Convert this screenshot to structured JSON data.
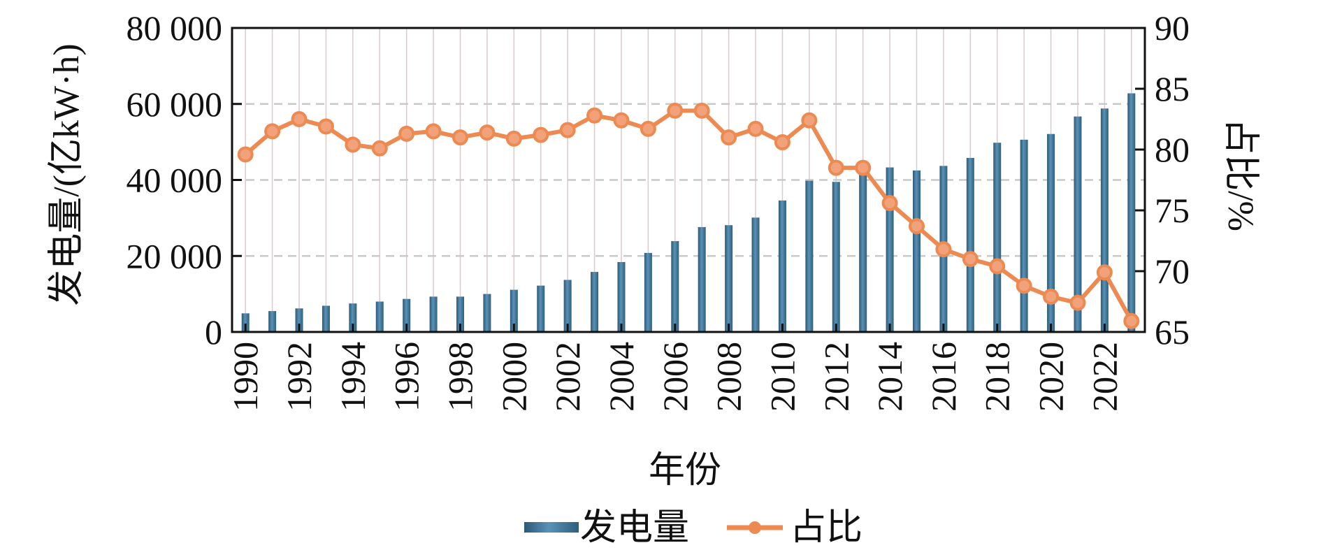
{
  "chart_data": {
    "type": "bar+line",
    "title": "",
    "xlabel": "年份",
    "ylabel_left": "发电量/(亿kW·h)",
    "ylabel_right": "占比/%",
    "ylim_left": [
      0,
      80000
    ],
    "ylim_right": [
      65,
      90
    ],
    "yticks_left": [
      "0",
      "20 000",
      "40 000",
      "60 000",
      "80 000"
    ],
    "yticks_right": [
      "65",
      "70",
      "75",
      "80",
      "85",
      "90"
    ],
    "xtick_labels": [
      "1990",
      "1992",
      "1994",
      "1996",
      "1998",
      "2000",
      "2002",
      "2004",
      "2006",
      "2008",
      "2010",
      "2012",
      "2014",
      "2016",
      "2018",
      "2020",
      "2022"
    ],
    "categories": [
      "1990",
      "1991",
      "1992",
      "1993",
      "1994",
      "1995",
      "1996",
      "1997",
      "1998",
      "1999",
      "2000",
      "2001",
      "2002",
      "2003",
      "2004",
      "2005",
      "2006",
      "2007",
      "2008",
      "2009",
      "2010",
      "2011",
      "2012",
      "2013",
      "2014",
      "2015",
      "2016",
      "2017",
      "2018",
      "2019",
      "2020",
      "2021",
      "2022",
      "2023"
    ],
    "grid": {
      "vertical": true,
      "horizontal_dashed": true
    },
    "legend_position": "bottom-center",
    "series": [
      {
        "name": "发电量",
        "type": "bar",
        "axis": "left",
        "color": "#3f7596",
        "values": [
          4900,
          5500,
          6200,
          6900,
          7500,
          8000,
          8700,
          9300,
          9300,
          10000,
          11100,
          12200,
          13700,
          15800,
          18400,
          20800,
          23900,
          27600,
          28100,
          30100,
          34600,
          39800,
          39500,
          42000,
          43300,
          42500,
          43700,
          45800,
          49800,
          50600,
          52100,
          56700,
          58800,
          62800
        ]
      },
      {
        "name": "占比",
        "type": "line",
        "axis": "right",
        "color": "#ec8a52",
        "values": [
          79.6,
          81.5,
          82.5,
          81.9,
          80.4,
          80.1,
          81.3,
          81.5,
          81.0,
          81.4,
          80.9,
          81.2,
          81.6,
          82.8,
          82.4,
          81.7,
          83.2,
          83.2,
          81.0,
          81.7,
          80.6,
          82.4,
          78.5,
          78.5,
          75.6,
          73.7,
          71.8,
          71.0,
          70.4,
          68.8,
          67.9,
          67.4,
          69.9,
          65.9
        ]
      }
    ]
  }
}
